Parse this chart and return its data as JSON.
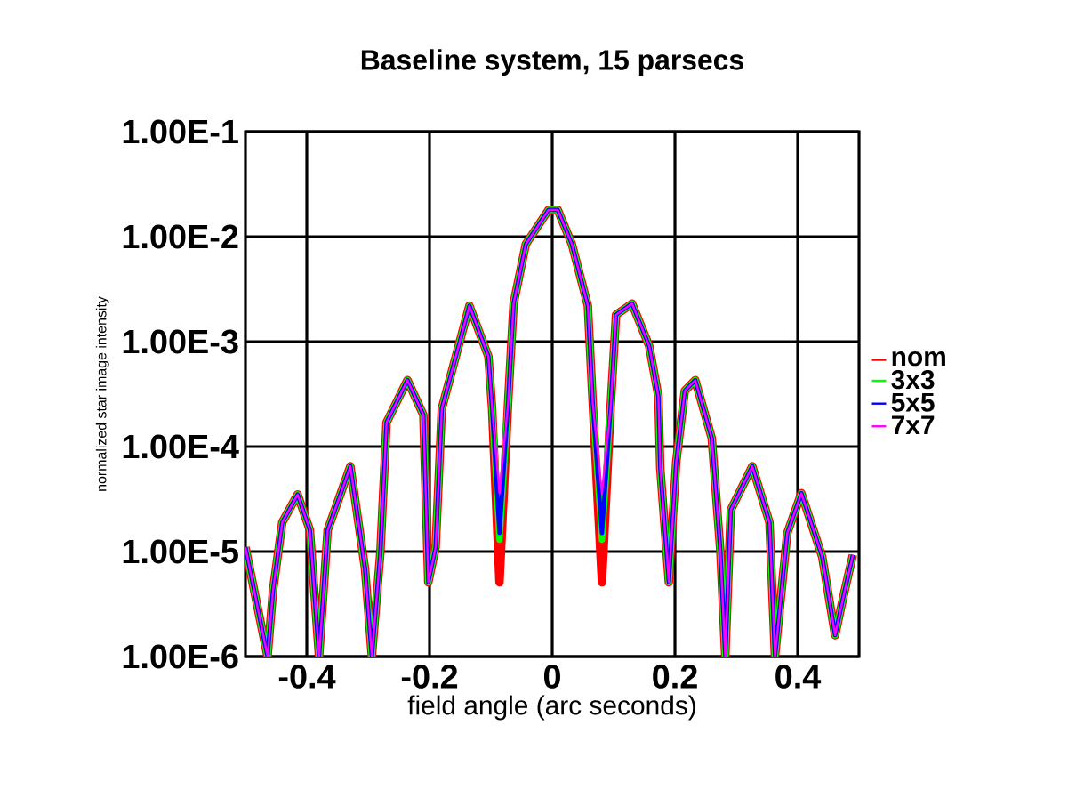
{
  "chart_data": {
    "type": "line",
    "title": "Baseline system, 15 parsecs",
    "xlabel": "field angle (arc seconds)",
    "ylabel": "normalized star image intensity",
    "x": [
      -0.5,
      -0.464,
      -0.455,
      -0.44,
      -0.415,
      -0.395,
      -0.38,
      -0.366,
      -0.329,
      -0.305,
      -0.294,
      -0.28,
      -0.27,
      -0.236,
      -0.21,
      -0.202,
      -0.19,
      -0.18,
      -0.135,
      -0.104,
      -0.098,
      -0.086,
      -0.072,
      -0.063,
      -0.043,
      -0.006,
      0.009,
      0.032,
      0.058,
      0.066,
      0.081,
      0.095,
      0.104,
      0.13,
      0.158,
      0.173,
      0.176,
      0.19,
      0.202,
      0.216,
      0.233,
      0.26,
      0.274,
      0.282,
      0.291,
      0.326,
      0.354,
      0.363,
      0.383,
      0.406,
      0.44,
      0.461,
      0.476,
      0.49
    ],
    "series": [
      {
        "name": "nom",
        "color": "#ff0000",
        "values": [
          1.1e-05,
          1e-06,
          4.3e-06,
          1.9e-05,
          3.5e-05,
          1.6e-05,
          1e-06,
          1.6e-05,
          6.5e-05,
          6.8e-06,
          1e-06,
          1e-05,
          0.00017,
          0.00043,
          0.0002,
          5.1e-06,
          1.1e-05,
          0.00023,
          0.0022,
          0.00072,
          0.00023,
          5.1e-06,
          0.00026,
          0.0023,
          0.0085,
          0.018,
          0.018,
          0.0085,
          0.0022,
          0.00026,
          5.1e-06,
          0.00023,
          0.0018,
          0.0023,
          0.00091,
          0.0003,
          6.3e-05,
          5.1e-06,
          7.1e-05,
          0.00034,
          0.00043,
          0.00012,
          1e-05,
          1e-06,
          2.5e-05,
          6.5e-05,
          1.9e-05,
          1e-06,
          1.5e-05,
          3.6e-05,
          8.9e-06,
          1.6e-06,
          4.1e-06,
          9.3e-06
        ]
      },
      {
        "name": "3x3",
        "color": "#00ff00",
        "values": [
          1.1e-05,
          1e-06,
          4.3e-06,
          1.9e-05,
          3.5e-05,
          1.6e-05,
          1e-06,
          1.6e-05,
          6.5e-05,
          6.8e-06,
          1e-06,
          1e-05,
          0.00017,
          0.00043,
          0.0002,
          5.1e-06,
          1.1e-05,
          0.00023,
          0.0022,
          0.00072,
          0.00023,
          1.3e-05,
          0.00026,
          0.0023,
          0.0085,
          0.018,
          0.018,
          0.0085,
          0.0022,
          0.00026,
          1.3e-05,
          0.00023,
          0.0018,
          0.0023,
          0.00091,
          0.0003,
          6.3e-05,
          5.1e-06,
          7.1e-05,
          0.00034,
          0.00043,
          0.00012,
          1e-05,
          1e-06,
          2.5e-05,
          6.5e-05,
          1.9e-05,
          1e-06,
          1.5e-05,
          3.6e-05,
          8.9e-06,
          1.6e-06,
          4.1e-06,
          9.3e-06
        ]
      },
      {
        "name": "5x5",
        "color": "#0000ff",
        "values": [
          1.1e-05,
          1e-06,
          4.3e-06,
          1.9e-05,
          3.5e-05,
          1.6e-05,
          1e-06,
          1.6e-05,
          6.5e-05,
          6.8e-06,
          1e-06,
          1e-05,
          0.00017,
          0.00043,
          0.0002,
          5.1e-06,
          1.1e-05,
          0.00023,
          0.0022,
          0.00072,
          0.00023,
          1.5e-05,
          0.00026,
          0.0023,
          0.0085,
          0.018,
          0.018,
          0.0085,
          0.0022,
          0.00026,
          1.5e-05,
          0.00023,
          0.0018,
          0.0023,
          0.00091,
          0.0003,
          6.3e-05,
          5.1e-06,
          7.1e-05,
          0.00034,
          0.00043,
          0.00012,
          1e-05,
          1e-06,
          2.5e-05,
          6.5e-05,
          1.9e-05,
          1e-06,
          1.5e-05,
          3.6e-05,
          8.9e-06,
          1.6e-06,
          4.1e-06,
          9.3e-06
        ]
      },
      {
        "name": "7x7",
        "color": "#ff00ff",
        "values": [
          1.1e-05,
          1e-06,
          4.3e-06,
          1.9e-05,
          3.5e-05,
          1.6e-05,
          1e-06,
          1.6e-05,
          6.5e-05,
          6.8e-06,
          1e-06,
          1e-05,
          0.00017,
          0.00043,
          0.0002,
          5.1e-06,
          1.1e-05,
          0.00023,
          0.0022,
          0.00072,
          0.00023,
          3.6e-05,
          0.00026,
          0.0023,
          0.0085,
          0.018,
          0.018,
          0.0085,
          0.0022,
          0.00026,
          3.6e-05,
          0.00023,
          0.0018,
          0.0023,
          0.00091,
          0.0003,
          6.3e-05,
          5.1e-06,
          7.1e-05,
          0.00034,
          0.00043,
          0.00012,
          1e-05,
          1e-06,
          2.5e-05,
          6.5e-05,
          1.9e-05,
          1e-06,
          1.5e-05,
          3.6e-05,
          8.9e-06,
          1.6e-06,
          4.1e-06,
          9.3e-06
        ]
      }
    ],
    "xlim": [
      -0.5,
      0.5
    ],
    "xticks": [
      -0.4,
      -0.2,
      0,
      0.2,
      0.4
    ],
    "ylim": [
      1e-06,
      0.1
    ],
    "yticks": [
      {
        "value": 1e-06,
        "label": "1.00E-6"
      },
      {
        "value": 1e-05,
        "label": "1.00E-5"
      },
      {
        "value": 0.0001,
        "label": "1.00E-4"
      },
      {
        "value": 0.001,
        "label": "1.00E-3"
      },
      {
        "value": 0.01,
        "label": "1.00E-2"
      },
      {
        "value": 0.1,
        "label": "1.00E-1"
      }
    ],
    "log": true,
    "grid": true,
    "legend": "right",
    "marker": "none",
    "line_style": "solid"
  }
}
